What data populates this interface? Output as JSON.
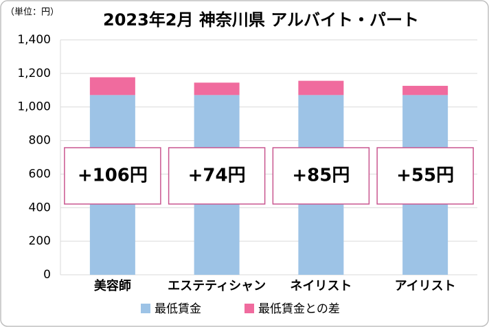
{
  "chart_data": {
    "type": "stacked-bar",
    "title": "2023年2月 神奈川県 アルバイト・パート",
    "unit_label": "（単位：円）",
    "categories": [
      "美容師",
      "エステティシャン",
      "ネイリスト",
      "アイリスト"
    ],
    "series": [
      {
        "name": "最低賃金",
        "color": "#9dc3e6",
        "values": [
          1071,
          1071,
          1071,
          1071
        ]
      },
      {
        "name": "最低賃金との差",
        "color": "#f06b9e",
        "values": [
          106,
          74,
          85,
          55
        ],
        "value_labels": [
          "+106円",
          "+74円",
          "+85円",
          "+55円"
        ]
      }
    ],
    "ylim": [
      0,
      1400
    ],
    "yticks": [
      0,
      200,
      400,
      600,
      800,
      {
        "value": 1000,
        "label": "1,000"
      },
      {
        "value": 1200,
        "label": "1,200"
      },
      {
        "value": 1400,
        "label": "1,400"
      }
    ],
    "grid": true,
    "legend": "bottom"
  }
}
